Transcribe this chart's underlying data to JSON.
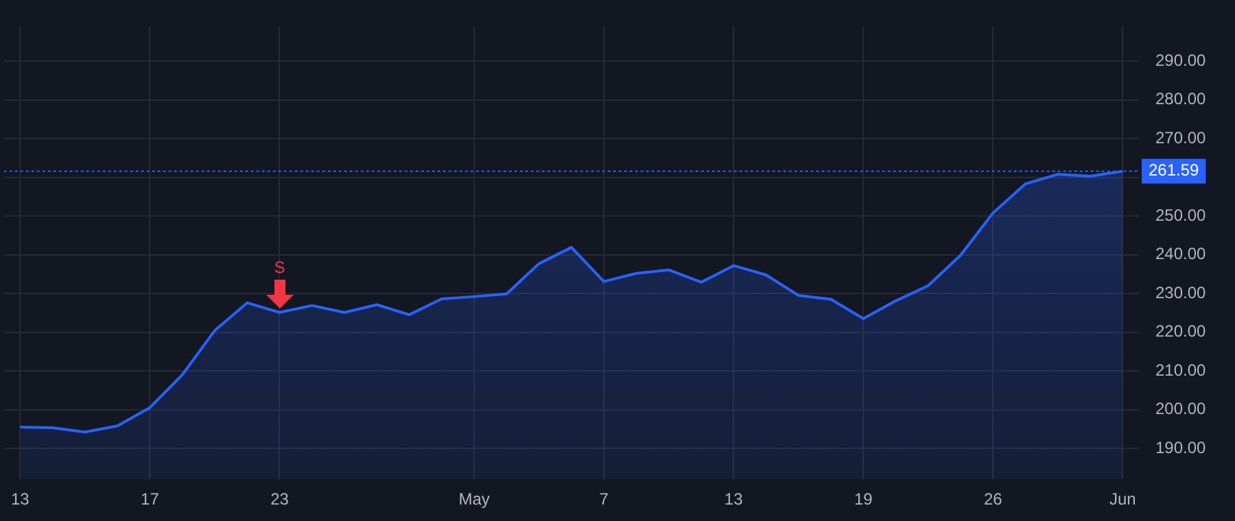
{
  "chart_data": {
    "type": "area",
    "categories": [
      "13",
      null,
      null,
      null,
      "17",
      null,
      null,
      null,
      "23",
      null,
      null,
      null,
      null,
      null,
      "May",
      null,
      null,
      null,
      "7",
      null,
      null,
      null,
      "13",
      null,
      null,
      null,
      "19",
      null,
      null,
      null,
      "26",
      null,
      null,
      null,
      "Jun"
    ],
    "series": [
      {
        "color": "#2962ff",
        "values": [
          195.5,
          195.3,
          194.2,
          195.8,
          200.5,
          209.0,
          220.4,
          227.6,
          225.1,
          226.9,
          225.1,
          227.1,
          224.5,
          228.6,
          229.2,
          229.9,
          237.7,
          241.9,
          233.1,
          235.2,
          236.1,
          232.9,
          237.2,
          234.8,
          229.5,
          228.5,
          223.5,
          228.1,
          232.0,
          239.9,
          250.8,
          258.3,
          260.8,
          260.3,
          261.59
        ]
      }
    ],
    "ylim": [
      182,
      299
    ],
    "yticks": [
      {
        "value": 190,
        "label": "190.00"
      },
      {
        "value": 200,
        "label": "200.00"
      },
      {
        "value": 210,
        "label": "210.00"
      },
      {
        "value": 220,
        "label": "220.00"
      },
      {
        "value": 230,
        "label": "230.00"
      },
      {
        "value": 240,
        "label": "240.00"
      },
      {
        "value": 250,
        "label": "250.00"
      },
      {
        "value": 260,
        "label": null
      },
      {
        "value": 270,
        "label": "270.00"
      },
      {
        "value": 280,
        "label": "280.00"
      },
      {
        "value": 290,
        "label": "290.00"
      }
    ],
    "ref_lines": [
      {
        "axis": "y",
        "value": 261.59,
        "label": "261.59",
        "color": "#2962ff",
        "line_style": "dotted"
      }
    ],
    "annotations": [
      {
        "text": "S",
        "x": "23",
        "y": 225.1
      }
    ],
    "grid": true,
    "legend": false,
    "marker": "none",
    "line_style": "solid"
  }
}
